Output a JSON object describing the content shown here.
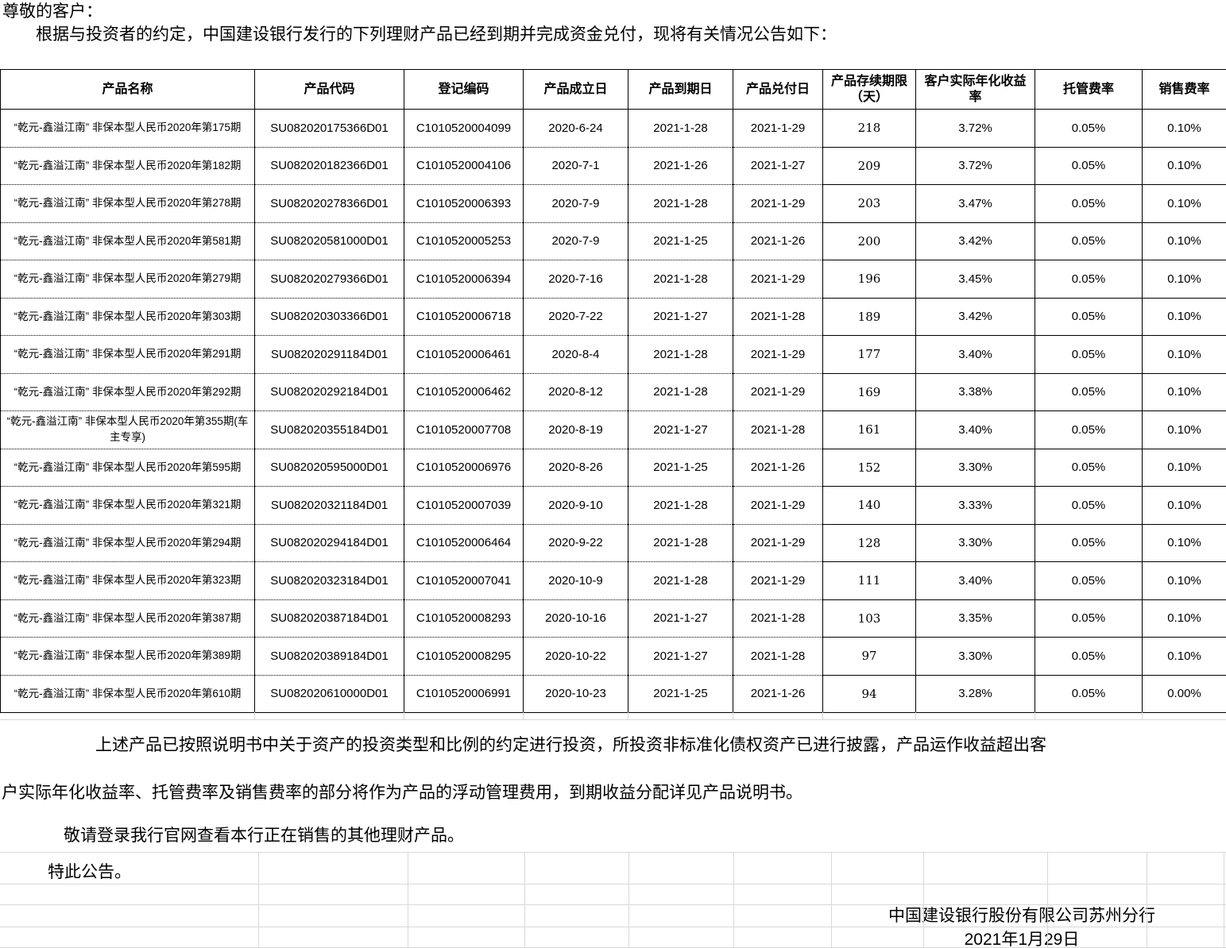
{
  "intro": {
    "salutation": "尊敬的客户：",
    "body": "根据与投资者的约定，中国建设银行发行的下列理财产品已经到期并完成资金兑付，现将有关情况公告如下："
  },
  "table": {
    "headers": [
      "产品名称",
      "产品代码",
      "登记编码",
      "产品成立日",
      "产品到期日",
      "产品兑付日",
      "产品存续期限（天）",
      "客户实际年化收益率",
      "托管费率",
      "销售费率"
    ],
    "rows": [
      [
        "“乾元-鑫溢江南” 非保本型人民币2020年第175期",
        "SU082020175366D01",
        "C1010520004099",
        "2020-6-24",
        "2021-1-28",
        "2021-1-29",
        "218",
        "3.72%",
        "0.05%",
        "0.10%"
      ],
      [
        "“乾元-鑫溢江南” 非保本型人民币2020年第182期",
        "SU082020182366D01",
        "C1010520004106",
        "2020-7-1",
        "2021-1-26",
        "2021-1-27",
        "209",
        "3.72%",
        "0.05%",
        "0.10%"
      ],
      [
        "“乾元-鑫溢江南” 非保本型人民币2020年第278期",
        "SU082020278366D01",
        "C1010520006393",
        "2020-7-9",
        "2021-1-28",
        "2021-1-29",
        "203",
        "3.47%",
        "0.05%",
        "0.10%"
      ],
      [
        "“乾元-鑫溢江南” 非保本型人民币2020年第581期",
        "SU082020581000D01",
        "C1010520005253",
        "2020-7-9",
        "2021-1-25",
        "2021-1-26",
        "200",
        "3.42%",
        "0.05%",
        "0.10%"
      ],
      [
        "“乾元-鑫溢江南” 非保本型人民币2020年第279期",
        "SU082020279366D01",
        "C1010520006394",
        "2020-7-16",
        "2021-1-28",
        "2021-1-29",
        "196",
        "3.45%",
        "0.05%",
        "0.10%"
      ],
      [
        "“乾元-鑫溢江南” 非保本型人民币2020年第303期",
        "SU082020303366D01",
        "C1010520006718",
        "2020-7-22",
        "2021-1-27",
        "2021-1-28",
        "189",
        "3.42%",
        "0.05%",
        "0.10%"
      ],
      [
        "“乾元-鑫溢江南” 非保本型人民币2020年第291期",
        "SU082020291184D01",
        "C1010520006461",
        "2020-8-4",
        "2021-1-28",
        "2021-1-29",
        "177",
        "3.40%",
        "0.05%",
        "0.10%"
      ],
      [
        "“乾元-鑫溢江南” 非保本型人民币2020年第292期",
        "SU082020292184D01",
        "C1010520006462",
        "2020-8-12",
        "2021-1-28",
        "2021-1-29",
        "169",
        "3.38%",
        "0.05%",
        "0.10%"
      ],
      [
        "“乾元-鑫溢江南” 非保本型人民币2020年第355期(车主专享)",
        "SU082020355184D01",
        "C1010520007708",
        "2020-8-19",
        "2021-1-27",
        "2021-1-28",
        "161",
        "3.40%",
        "0.05%",
        "0.10%"
      ],
      [
        "“乾元-鑫溢江南” 非保本型人民币2020年第595期",
        "SU082020595000D01",
        "C1010520006976",
        "2020-8-26",
        "2021-1-25",
        "2021-1-26",
        "152",
        "3.30%",
        "0.05%",
        "0.10%"
      ],
      [
        "“乾元-鑫溢江南” 非保本型人民币2020年第321期",
        "SU082020321184D01",
        "C1010520007039",
        "2020-9-10",
        "2021-1-28",
        "2021-1-29",
        "140",
        "3.33%",
        "0.05%",
        "0.10%"
      ],
      [
        "“乾元-鑫溢江南” 非保本型人民币2020年第294期",
        "SU082020294184D01",
        "C1010520006464",
        "2020-9-22",
        "2021-1-28",
        "2021-1-29",
        "128",
        "3.30%",
        "0.05%",
        "0.10%"
      ],
      [
        "“乾元-鑫溢江南” 非保本型人民币2020年第323期",
        "SU082020323184D01",
        "C1010520007041",
        "2020-10-9",
        "2021-1-28",
        "2021-1-29",
        "111",
        "3.40%",
        "0.05%",
        "0.10%"
      ],
      [
        "“乾元-鑫溢江南” 非保本型人民币2020年第387期",
        "SU082020387184D01",
        "C1010520008293",
        "2020-10-16",
        "2021-1-27",
        "2021-1-28",
        "103",
        "3.35%",
        "0.05%",
        "0.10%"
      ],
      [
        "“乾元-鑫溢江南” 非保本型人民币2020年第389期",
        "SU082020389184D01",
        "C1010520008295",
        "2020-10-22",
        "2021-1-27",
        "2021-1-28",
        "97",
        "3.30%",
        "0.05%",
        "0.10%"
      ],
      [
        "“乾元-鑫溢江南” 非保本型人民币2020年第610期",
        "SU082020610000D01",
        "C1010520006991",
        "2020-10-23",
        "2021-1-25",
        "2021-1-26",
        "94",
        "3.28%",
        "0.05%",
        "0.00%"
      ]
    ]
  },
  "notes": {
    "para1": "上述产品已按照说明书中关于资产的投资类型和比例的约定进行投资，所投资非标准化债权资产已进行披露，产品运作收益超出客",
    "para2": "户实际年化收益率、托管费率及销售费率的部分将作为产品的浮动管理费用，到期收益分配详见产品说明书。",
    "browse_line": "敬请登录我行官网查看本行正在销售的其他理财产品。",
    "closing": "特此公告。"
  },
  "signature": {
    "issuer": "中国建设银行股份有限公司苏州分行",
    "date": "2021年1月29日"
  },
  "colors": {
    "background": "#ffffff",
    "text": "#000000",
    "table_border": "#000000",
    "grid_line": "#d8d8d8"
  }
}
